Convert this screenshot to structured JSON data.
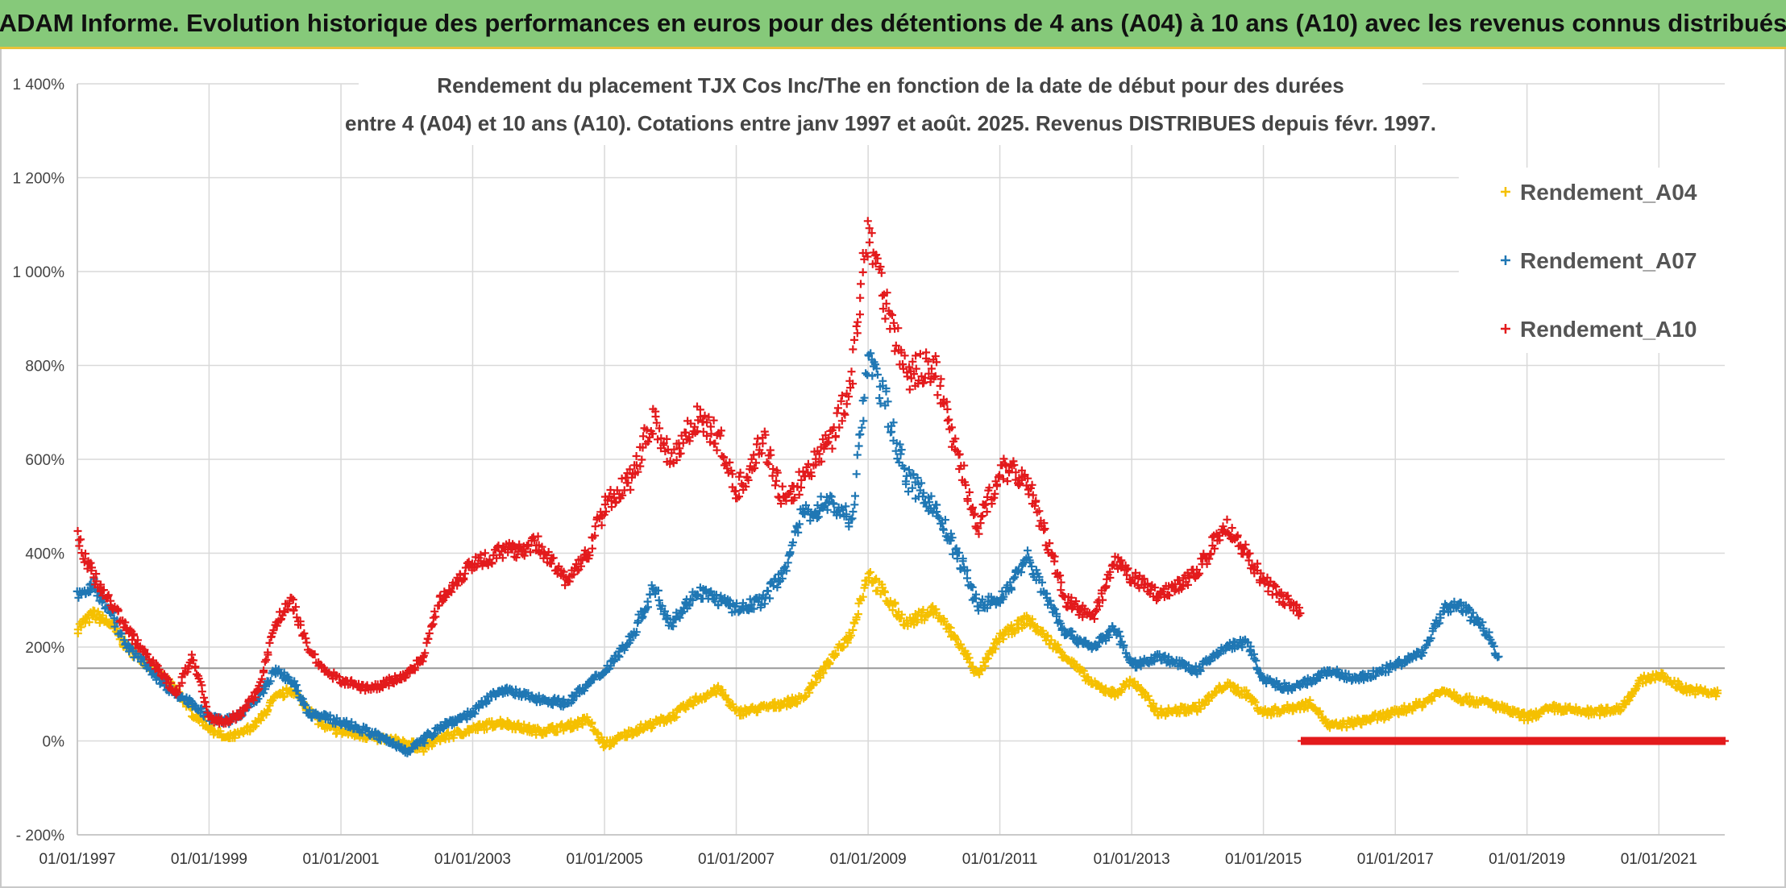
{
  "header": {
    "banner_title": "ADAM Informe. Evolution historique des performances en euros pour des détentions de 4 ans (A04) à 10 ans (A10) avec les revenus connus distribués"
  },
  "chart_data": {
    "type": "scatter",
    "title_line1": "Rendement du placement TJX Cos Inc/The en fonction de la date de début pour des durées",
    "title_line2": "entre 4 (A04) et 10 ans (A10). Cotations entre janv 1997 et août. 2025. Revenus DISTRIBUES depuis févr. 1997.",
    "xlabel": "",
    "ylabel": "",
    "x_range": [
      "1997-01-01",
      "2022-01-01"
    ],
    "y_range": [
      -200,
      1400
    ],
    "y_ticks": [
      -200,
      0,
      200,
      400,
      600,
      800,
      1000,
      1200,
      1400
    ],
    "y_tick_labels": [
      "- 200%",
      "0%",
      "200%",
      "400%",
      "600%",
      "800%",
      "1 000%",
      "1 200%",
      "1 400%"
    ],
    "x_ticks": [
      "1997-01-01",
      "1999-01-01",
      "2001-01-01",
      "2003-01-01",
      "2005-01-01",
      "2007-01-01",
      "2009-01-01",
      "2011-01-01",
      "2013-01-01",
      "2015-01-01",
      "2017-01-01",
      "2019-01-01",
      "2021-01-01"
    ],
    "x_tick_labels": [
      "01/01/1997",
      "01/01/1999",
      "01/01/2001",
      "01/01/2003",
      "01/01/2005",
      "01/01/2007",
      "01/01/2009",
      "01/01/2011",
      "01/01/2013",
      "01/01/2015",
      "01/01/2017",
      "01/01/2019",
      "01/01/2021"
    ],
    "grid": true,
    "legend_position": "top-right",
    "marker": "+",
    "series": [
      {
        "name": "Rendement_A04",
        "color": "#f5c000",
        "points": [
          [
            "1997-01-01",
            240
          ],
          [
            "1997-04-01",
            270
          ],
          [
            "1997-07-01",
            250
          ],
          [
            "1997-10-01",
            200
          ],
          [
            "1998-01-01",
            170
          ],
          [
            "1998-04-01",
            140
          ],
          [
            "1998-07-01",
            110
          ],
          [
            "1998-10-01",
            60
          ],
          [
            "1999-01-01",
            30
          ],
          [
            "1999-04-01",
            5
          ],
          [
            "1999-07-01",
            15
          ],
          [
            "1999-10-01",
            40
          ],
          [
            "2000-01-01",
            90
          ],
          [
            "2000-04-01",
            110
          ],
          [
            "2000-07-01",
            70
          ],
          [
            "2000-10-01",
            30
          ],
          [
            "2001-01-01",
            20
          ],
          [
            "2001-06-01",
            10
          ],
          [
            "2002-01-01",
            -5
          ],
          [
            "2002-04-01",
            -15
          ],
          [
            "2002-07-01",
            5
          ],
          [
            "2003-01-01",
            25
          ],
          [
            "2003-06-01",
            40
          ],
          [
            "2004-01-01",
            20
          ],
          [
            "2004-06-01",
            30
          ],
          [
            "2004-10-01",
            45
          ],
          [
            "2005-01-01",
            -10
          ],
          [
            "2005-06-01",
            20
          ],
          [
            "2006-01-01",
            50
          ],
          [
            "2006-06-01",
            90
          ],
          [
            "2006-10-01",
            110
          ],
          [
            "2007-01-01",
            60
          ],
          [
            "2007-06-01",
            70
          ],
          [
            "2008-01-01",
            90
          ],
          [
            "2008-06-01",
            170
          ],
          [
            "2008-10-01",
            230
          ],
          [
            "2009-01-01",
            360
          ],
          [
            "2009-04-01",
            310
          ],
          [
            "2009-08-01",
            250
          ],
          [
            "2010-01-01",
            280
          ],
          [
            "2010-06-01",
            200
          ],
          [
            "2010-09-01",
            140
          ],
          [
            "2011-01-01",
            220
          ],
          [
            "2011-06-01",
            260
          ],
          [
            "2012-01-01",
            180
          ],
          [
            "2012-06-01",
            120
          ],
          [
            "2012-10-01",
            100
          ],
          [
            "2013-01-01",
            130
          ],
          [
            "2013-06-01",
            60
          ],
          [
            "2014-01-01",
            70
          ],
          [
            "2014-06-01",
            120
          ],
          [
            "2014-10-01",
            100
          ],
          [
            "2015-01-01",
            60
          ],
          [
            "2015-06-01",
            70
          ],
          [
            "2015-10-01",
            80
          ],
          [
            "2016-01-01",
            30
          ],
          [
            "2016-06-01",
            40
          ],
          [
            "2017-01-01",
            60
          ],
          [
            "2017-06-01",
            80
          ],
          [
            "2017-10-01",
            110
          ],
          [
            "2018-01-01",
            90
          ],
          [
            "2018-06-01",
            80
          ],
          [
            "2019-01-01",
            50
          ],
          [
            "2019-06-01",
            70
          ],
          [
            "2020-01-01",
            60
          ],
          [
            "2020-06-01",
            70
          ],
          [
            "2020-10-01",
            130
          ],
          [
            "2021-01-01",
            140
          ],
          [
            "2021-06-01",
            110
          ],
          [
            "2021-12-01",
            100
          ]
        ]
      },
      {
        "name": "Rendement_A07",
        "color": "#1f77b4",
        "points": [
          [
            "1997-01-01",
            310
          ],
          [
            "1997-04-01",
            330
          ],
          [
            "1997-07-01",
            280
          ],
          [
            "1997-10-01",
            200
          ],
          [
            "1998-01-01",
            170
          ],
          [
            "1998-04-01",
            130
          ],
          [
            "1998-07-01",
            100
          ],
          [
            "1998-10-01",
            80
          ],
          [
            "1999-01-01",
            50
          ],
          [
            "1999-04-01",
            40
          ],
          [
            "1999-07-01",
            60
          ],
          [
            "1999-10-01",
            90
          ],
          [
            "2000-01-01",
            150
          ],
          [
            "2000-04-01",
            130
          ],
          [
            "2000-07-01",
            60
          ],
          [
            "2000-10-01",
            50
          ],
          [
            "2001-01-01",
            40
          ],
          [
            "2001-06-01",
            20
          ],
          [
            "2002-01-01",
            -20
          ],
          [
            "2002-04-01",
            0
          ],
          [
            "2002-07-01",
            30
          ],
          [
            "2003-01-01",
            60
          ],
          [
            "2003-06-01",
            110
          ],
          [
            "2004-01-01",
            90
          ],
          [
            "2004-06-01",
            80
          ],
          [
            "2004-10-01",
            120
          ],
          [
            "2005-01-01",
            150
          ],
          [
            "2005-06-01",
            220
          ],
          [
            "2005-10-01",
            330
          ],
          [
            "2006-01-01",
            250
          ],
          [
            "2006-06-01",
            320
          ],
          [
            "2006-10-01",
            300
          ],
          [
            "2007-01-01",
            280
          ],
          [
            "2007-06-01",
            300
          ],
          [
            "2007-10-01",
            370
          ],
          [
            "2008-01-01",
            480
          ],
          [
            "2008-06-01",
            510
          ],
          [
            "2008-10-01",
            470
          ],
          [
            "2009-01-01",
            820
          ],
          [
            "2009-04-01",
            730
          ],
          [
            "2009-08-01",
            560
          ],
          [
            "2010-01-01",
            500
          ],
          [
            "2010-06-01",
            380
          ],
          [
            "2010-09-01",
            290
          ],
          [
            "2011-01-01",
            300
          ],
          [
            "2011-06-01",
            390
          ],
          [
            "2012-01-01",
            230
          ],
          [
            "2012-06-01",
            200
          ],
          [
            "2012-10-01",
            240
          ],
          [
            "2013-01-01",
            160
          ],
          [
            "2013-06-01",
            180
          ],
          [
            "2014-01-01",
            150
          ],
          [
            "2014-06-01",
            200
          ],
          [
            "2014-10-01",
            210
          ],
          [
            "2015-01-01",
            130
          ],
          [
            "2015-06-01",
            110
          ],
          [
            "2015-10-01",
            130
          ],
          [
            "2016-01-01",
            150
          ],
          [
            "2016-06-01",
            130
          ],
          [
            "2017-01-01",
            160
          ],
          [
            "2017-06-01",
            190
          ],
          [
            "2017-10-01",
            280
          ],
          [
            "2018-01-01",
            290
          ],
          [
            "2018-06-01",
            230
          ],
          [
            "2018-08-01",
            170
          ]
        ]
      },
      {
        "name": "Rendement_A10",
        "color": "#e31a1c",
        "points": [
          [
            "1997-01-01",
            430
          ],
          [
            "1997-04-01",
            350
          ],
          [
            "1997-07-01",
            300
          ],
          [
            "1997-10-01",
            240
          ],
          [
            "1998-01-01",
            190
          ],
          [
            "1998-04-01",
            150
          ],
          [
            "1998-07-01",
            100
          ],
          [
            "1998-10-01",
            180
          ],
          [
            "1999-01-01",
            50
          ],
          [
            "1999-04-01",
            40
          ],
          [
            "1999-07-01",
            60
          ],
          [
            "1999-10-01",
            110
          ],
          [
            "2000-01-01",
            250
          ],
          [
            "2000-04-01",
            300
          ],
          [
            "2000-07-01",
            200
          ],
          [
            "2000-10-01",
            150
          ],
          [
            "2001-01-01",
            130
          ],
          [
            "2001-06-01",
            110
          ],
          [
            "2002-01-01",
            140
          ],
          [
            "2002-04-01",
            180
          ],
          [
            "2002-07-01",
            300
          ],
          [
            "2003-01-01",
            380
          ],
          [
            "2003-06-01",
            400
          ],
          [
            "2004-01-01",
            420
          ],
          [
            "2004-06-01",
            340
          ],
          [
            "2004-10-01",
            400
          ],
          [
            "2005-01-01",
            500
          ],
          [
            "2005-06-01",
            560
          ],
          [
            "2005-10-01",
            690
          ],
          [
            "2006-01-01",
            600
          ],
          [
            "2006-06-01",
            690
          ],
          [
            "2006-10-01",
            640
          ],
          [
            "2007-01-01",
            530
          ],
          [
            "2007-06-01",
            640
          ],
          [
            "2007-10-01",
            500
          ],
          [
            "2008-01-01",
            560
          ],
          [
            "2008-06-01",
            640
          ],
          [
            "2008-10-01",
            760
          ],
          [
            "2009-01-01",
            1100
          ],
          [
            "2009-04-01",
            950
          ],
          [
            "2009-08-01",
            780
          ],
          [
            "2010-01-01",
            800
          ],
          [
            "2010-06-01",
            580
          ],
          [
            "2010-09-01",
            450
          ],
          [
            "2011-01-01",
            580
          ],
          [
            "2011-06-01",
            560
          ],
          [
            "2012-01-01",
            300
          ],
          [
            "2012-06-01",
            260
          ],
          [
            "2012-10-01",
            380
          ],
          [
            "2013-01-01",
            350
          ],
          [
            "2013-06-01",
            310
          ],
          [
            "2014-01-01",
            360
          ],
          [
            "2014-06-01",
            460
          ],
          [
            "2014-10-01",
            400
          ],
          [
            "2015-01-01",
            340
          ],
          [
            "2015-06-01",
            290
          ],
          [
            "2015-08-01",
            270
          ]
        ],
        "flat_segment": {
          "from": "2015-08-01",
          "to": "2022-01-01",
          "value": 0
        }
      }
    ]
  }
}
